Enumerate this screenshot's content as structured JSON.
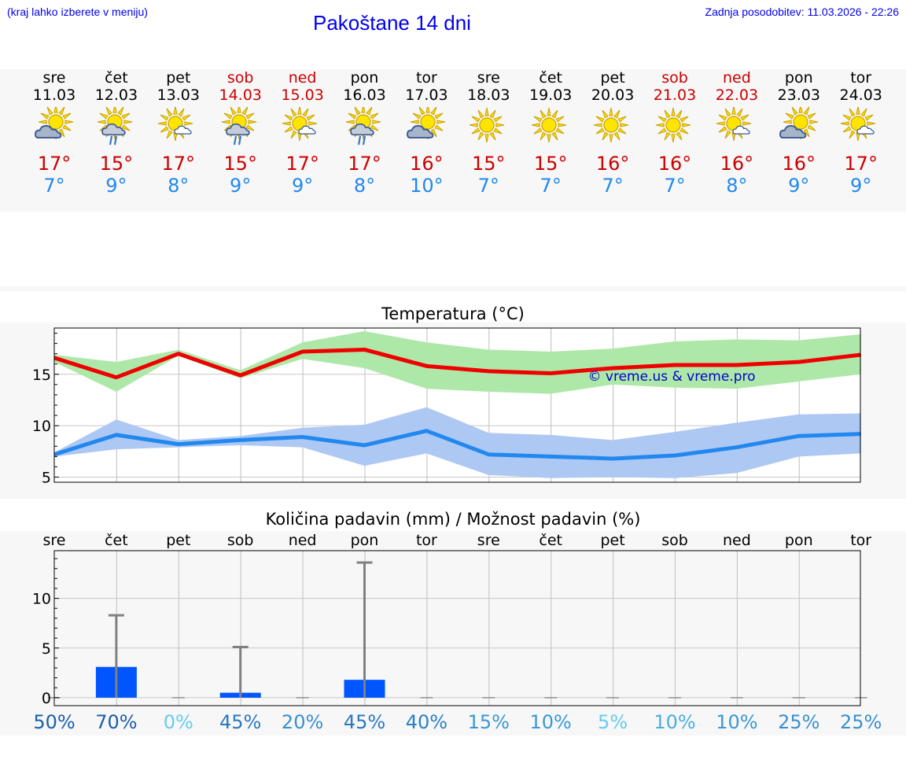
{
  "header": {
    "hint": "(kraj lahko izberete v meniju)",
    "title": "Pakoštane 14 dni",
    "updated": "Zadnja posodobitev: 11.03.2026 - 22:26"
  },
  "days": [
    {
      "name": "sre",
      "date": "11.03",
      "weekend": false,
      "icon": "sun-cloud-icon",
      "max": "17°",
      "min": "7°"
    },
    {
      "name": "čet",
      "date": "12.03",
      "weekend": false,
      "icon": "sun-cloud-rain-icon",
      "max": "15°",
      "min": "9°"
    },
    {
      "name": "pet",
      "date": "13.03",
      "weekend": false,
      "icon": "sun-small-cloud-icon",
      "max": "17°",
      "min": "8°"
    },
    {
      "name": "sob",
      "date": "14.03",
      "weekend": true,
      "icon": "sun-cloud-rain-icon",
      "max": "15°",
      "min": "9°"
    },
    {
      "name": "ned",
      "date": "15.03",
      "weekend": true,
      "icon": "sun-small-cloud-icon",
      "max": "17°",
      "min": "9°"
    },
    {
      "name": "pon",
      "date": "16.03",
      "weekend": false,
      "icon": "sun-cloud-rain-icon",
      "max": "17°",
      "min": "8°"
    },
    {
      "name": "tor",
      "date": "17.03",
      "weekend": false,
      "icon": "sun-cloud-icon",
      "max": "16°",
      "min": "10°"
    },
    {
      "name": "sre",
      "date": "18.03",
      "weekend": false,
      "icon": "sun-icon",
      "max": "15°",
      "min": "7°"
    },
    {
      "name": "čet",
      "date": "19.03",
      "weekend": false,
      "icon": "sun-icon",
      "max": "15°",
      "min": "7°"
    },
    {
      "name": "pet",
      "date": "20.03",
      "weekend": false,
      "icon": "sun-icon",
      "max": "16°",
      "min": "7°"
    },
    {
      "name": "sob",
      "date": "21.03",
      "weekend": true,
      "icon": "sun-icon",
      "max": "16°",
      "min": "7°"
    },
    {
      "name": "ned",
      "date": "22.03",
      "weekend": true,
      "icon": "sun-small-cloud-icon",
      "max": "16°",
      "min": "8°"
    },
    {
      "name": "pon",
      "date": "23.03",
      "weekend": false,
      "icon": "sun-cloud-icon",
      "max": "16°",
      "min": "9°"
    },
    {
      "name": "tor",
      "date": "24.03",
      "weekend": false,
      "icon": "sun-small-cloud-icon",
      "max": "17°",
      "min": "9°"
    }
  ],
  "colors": {
    "max_line": "#ee0000",
    "max_band": "#aee8a8",
    "min_line": "#2288ee",
    "min_band": "#aec8f4",
    "bar": "#0055ff",
    "whisker": "#808080",
    "weekend": "#cc0000",
    "link": "#0000ee"
  },
  "chart_data": [
    {
      "type": "line",
      "title": "Temperatura (°C)",
      "watermark": "© vreme.us & vreme.pro",
      "x": [
        0,
        1,
        2,
        3,
        4,
        5,
        6,
        7,
        8,
        9,
        10,
        11,
        12,
        13
      ],
      "ylim": [
        4.5,
        19.5
      ],
      "yticks": [
        5,
        10,
        15
      ],
      "series": [
        {
          "name": "max",
          "values": [
            16.6,
            14.7,
            17.0,
            14.9,
            17.2,
            17.4,
            15.8,
            15.3,
            15.1,
            15.6,
            15.9,
            15.9,
            16.2,
            16.9
          ],
          "band_upper": [
            16.9,
            16.2,
            17.4,
            15.4,
            18.1,
            19.2,
            18.1,
            17.4,
            17.2,
            17.5,
            18.2,
            18.4,
            18.3,
            18.9
          ],
          "band_lower": [
            16.2,
            13.3,
            16.8,
            14.6,
            16.5,
            15.6,
            13.6,
            13.3,
            13.1,
            14.0,
            13.7,
            13.6,
            14.3,
            15.0
          ]
        },
        {
          "name": "min",
          "values": [
            7.2,
            9.1,
            8.2,
            8.6,
            8.9,
            8.1,
            9.5,
            7.2,
            7.0,
            6.8,
            7.1,
            7.9,
            9.0,
            9.2
          ],
          "band_upper": [
            7.4,
            10.6,
            8.6,
            9.0,
            9.8,
            10.1,
            11.8,
            9.3,
            9.1,
            8.6,
            9.4,
            10.3,
            11.1,
            11.2
          ],
          "band_lower": [
            7.0,
            7.7,
            7.9,
            8.1,
            7.9,
            6.1,
            7.3,
            5.2,
            4.9,
            5.0,
            4.9,
            5.4,
            7.0,
            7.3
          ]
        }
      ]
    },
    {
      "type": "bar",
      "title": "Količina padavin (mm) / Možnost padavin (%)",
      "categories": [
        "sre",
        "čet",
        "pet",
        "sob",
        "ned",
        "pon",
        "tor",
        "sre",
        "čet",
        "pet",
        "sob",
        "ned",
        "pon",
        "tor"
      ],
      "values": [
        0,
        3.1,
        0,
        0.5,
        0,
        1.8,
        0,
        0,
        0,
        0,
        0,
        0,
        0,
        0
      ],
      "max_values": [
        0,
        8.3,
        0,
        5.1,
        0,
        13.6,
        0,
        0,
        0,
        0,
        0,
        0,
        0,
        0
      ],
      "ylim": [
        -0.8,
        14.8
      ],
      "yticks": [
        0,
        5,
        10
      ],
      "probability": [
        "50%",
        "70%",
        "0%",
        "45%",
        "20%",
        "45%",
        "40%",
        "15%",
        "10%",
        "5%",
        "10%",
        "10%",
        "25%",
        "25%"
      ],
      "probability_colors": [
        "#1a5fa8",
        "#1a5fa8",
        "#66ccee",
        "#2a78c0",
        "#3a90d0",
        "#2a78c0",
        "#2a80c8",
        "#3a98d8",
        "#3a98d8",
        "#66ccee",
        "#4aaee0",
        "#3a98d8",
        "#3a90d0",
        "#3a90d0"
      ]
    }
  ]
}
